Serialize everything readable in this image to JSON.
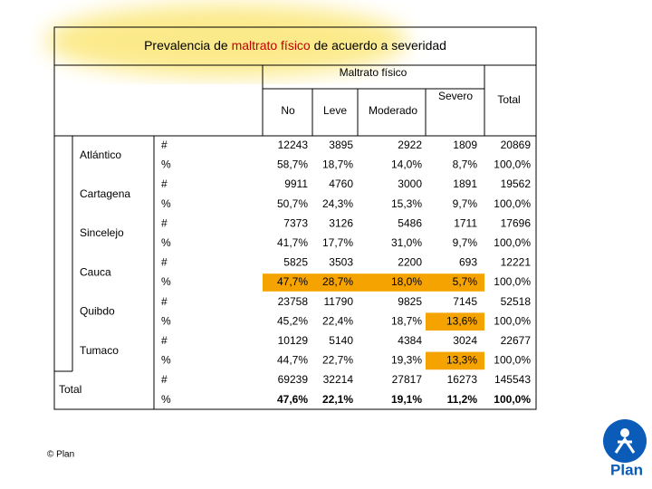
{
  "title": {
    "before": "Prevalencia de",
    "highlight": "maltrato físico",
    "after": "de acuerdo a severidad"
  },
  "table": {
    "group_header": "Maltrato físico",
    "columns": [
      "No",
      "Leve",
      "Moderado",
      "Severo"
    ],
    "total_header": "Total",
    "groups": [
      {
        "name": "Atlántico",
        "rows": [
          {
            "measure": "#",
            "values": [
              "12243",
              "3895",
              "2922",
              "1809",
              "20869"
            ]
          },
          {
            "measure": "%",
            "values": [
              "58,7%",
              "18,7%",
              "14,0%",
              "8,7%",
              "100,0%"
            ]
          }
        ]
      },
      {
        "name": "Cartagena",
        "rows": [
          {
            "measure": "#",
            "values": [
              "9911",
              "4760",
              "3000",
              "1891",
              "19562"
            ]
          },
          {
            "measure": "%",
            "values": [
              "50,7%",
              "24,3%",
              "15,3%",
              "9,7%",
              "100,0%"
            ]
          }
        ]
      },
      {
        "name": "Sincelejo",
        "rows": [
          {
            "measure": "#",
            "values": [
              "7373",
              "3126",
              "5486",
              "1711",
              "17696"
            ]
          },
          {
            "measure": "%",
            "values": [
              "41,7%",
              "17,7%",
              "31,0%",
              "9,7%",
              "100,0%"
            ]
          }
        ]
      },
      {
        "name": "Cauca",
        "rows": [
          {
            "measure": "#",
            "values": [
              "5825",
              "3503",
              "2200",
              "693",
              "12221"
            ]
          },
          {
            "measure": "%",
            "values": [
              "47,7%",
              "28,7%",
              "18,0%",
              "5,7%",
              "100,0%"
            ]
          }
        ]
      },
      {
        "name": "Quibdo",
        "rows": [
          {
            "measure": "#",
            "values": [
              "23758",
              "11790",
              "9825",
              "7145",
              "52518"
            ]
          },
          {
            "measure": "%",
            "values": [
              "45,2%",
              "22,4%",
              "18,7%",
              "13,6%",
              "100,0%"
            ]
          }
        ]
      },
      {
        "name": "Tumaco",
        "rows": [
          {
            "measure": "#",
            "values": [
              "10129",
              "5140",
              "4384",
              "3024",
              "22677"
            ]
          },
          {
            "measure": "%",
            "values": [
              "44,7%",
              "22,7%",
              "19,3%",
              "13,3%",
              "100,0%"
            ]
          }
        ]
      },
      {
        "name": "Total",
        "rows": [
          {
            "measure": "#",
            "values": [
              "69239",
              "32214",
              "27817",
              "16273",
              "145543"
            ]
          },
          {
            "measure": "%",
            "values": [
              "47,6%",
              "22,1%",
              "19,1%",
              "11,2%",
              "100,0%"
            ]
          }
        ]
      }
    ]
  },
  "footer": "© Plan",
  "logo": "Plan"
}
